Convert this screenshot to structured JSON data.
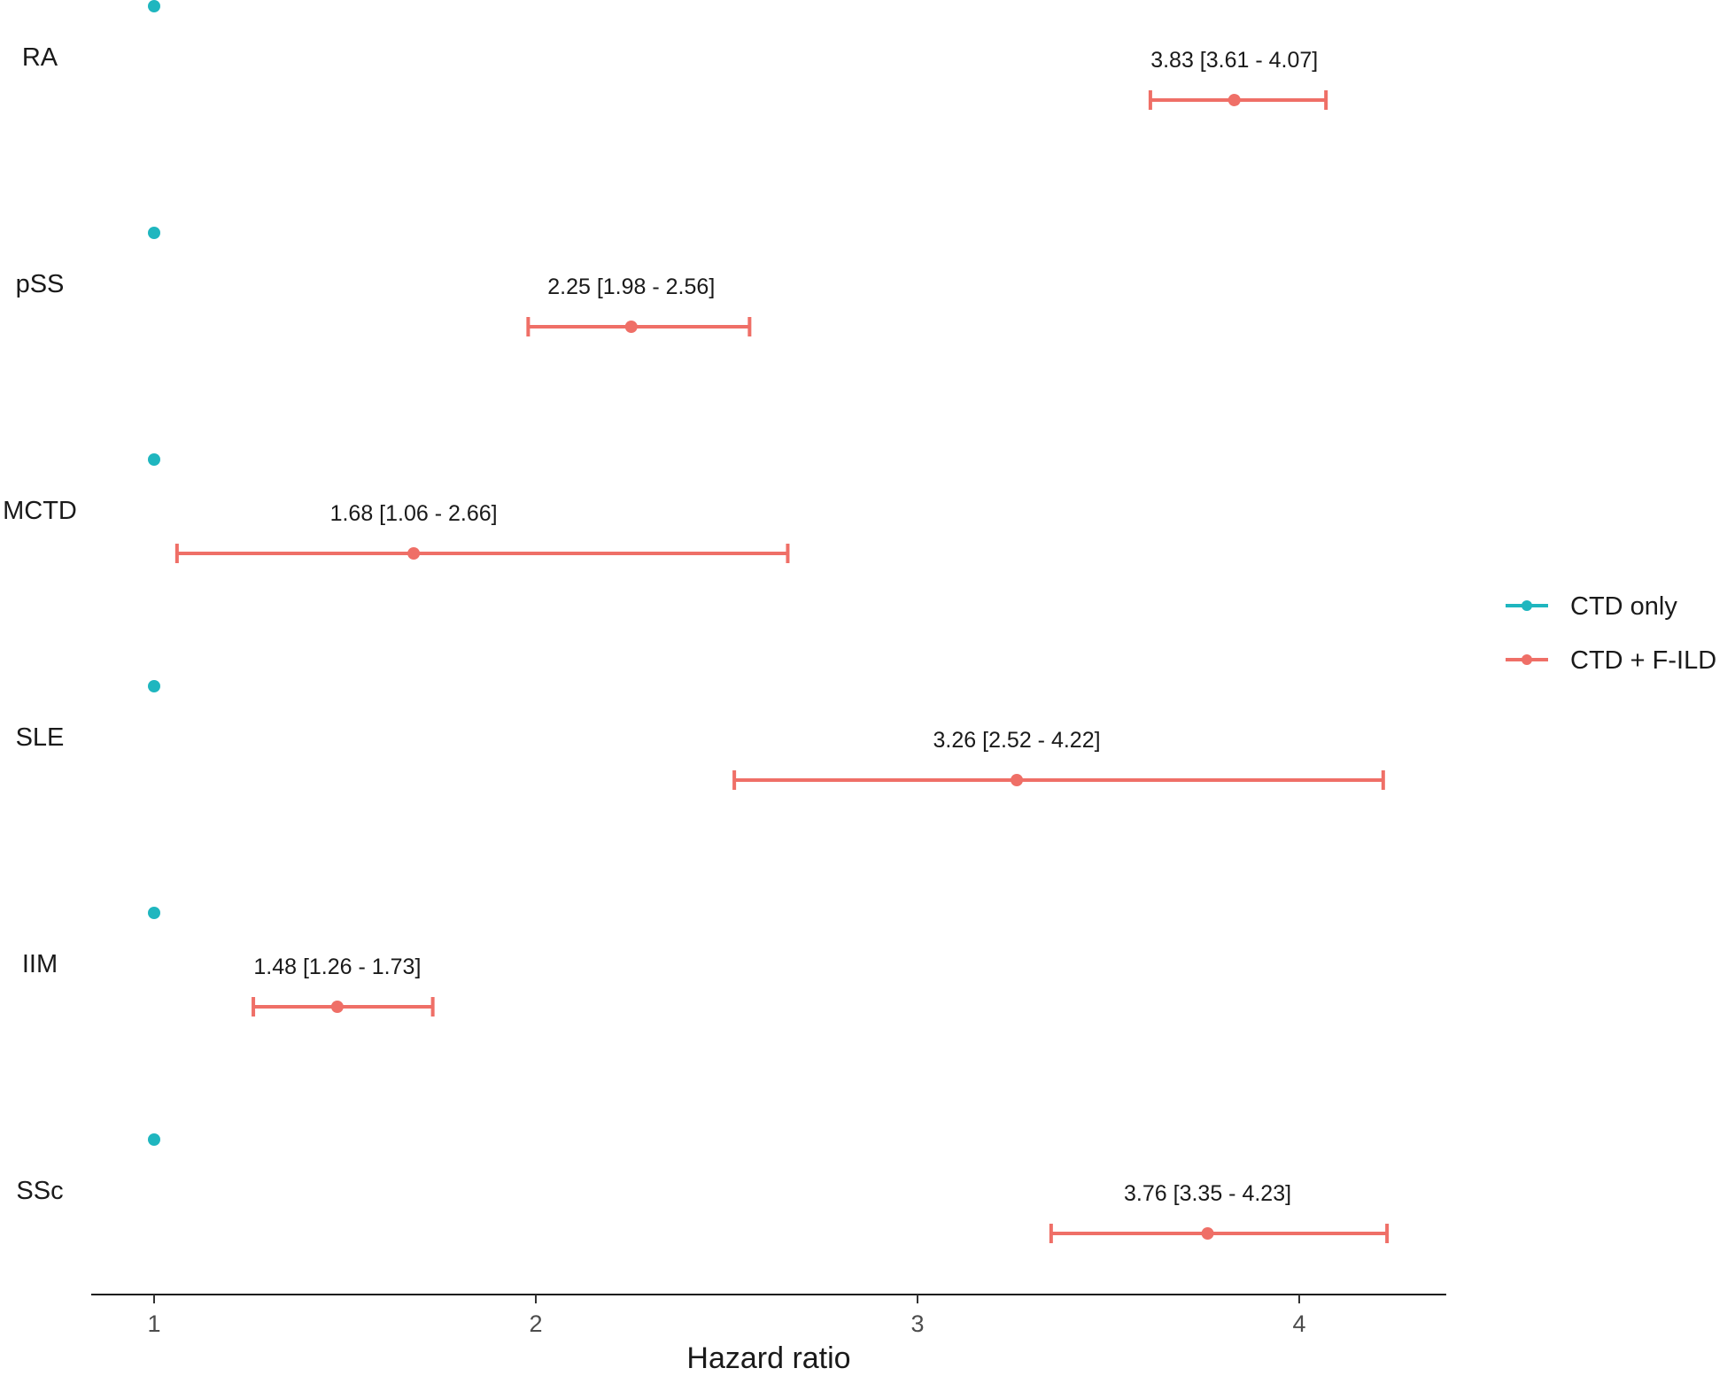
{
  "chart_data": {
    "type": "scatter",
    "subtype": "forest-plot",
    "title": "",
    "xlabel": "Hazard ratio",
    "ylabel": "",
    "xlim": [
      0.84,
      4.4
    ],
    "xticks": [
      1,
      2,
      3,
      4
    ],
    "xtick_labels": [
      "1",
      "2",
      "3",
      "4"
    ],
    "grid": false,
    "legend_position": "right",
    "categories": [
      "RA",
      "pSS",
      "MCTD",
      "SLE",
      "IIM",
      "SSc"
    ],
    "series": [
      {
        "name": "CTD only",
        "color": "#1fb6bf",
        "points": [
          {
            "category": "RA",
            "hr": 1
          },
          {
            "category": "pSS",
            "hr": 1
          },
          {
            "category": "MCTD",
            "hr": 1
          },
          {
            "category": "SLE",
            "hr": 1
          },
          {
            "category": "IIM",
            "hr": 1
          },
          {
            "category": "SSc",
            "hr": 1
          }
        ]
      },
      {
        "name": "CTD + F-ILD",
        "color": "#ef6f67",
        "points": [
          {
            "category": "RA",
            "hr": 3.83,
            "lower": 3.61,
            "upper": 4.07,
            "label": "3.83 [3.61 - 4.07]"
          },
          {
            "category": "pSS",
            "hr": 2.25,
            "lower": 1.98,
            "upper": 2.56,
            "label": "2.25 [1.98 - 2.56]"
          },
          {
            "category": "MCTD",
            "hr": 1.68,
            "lower": 1.06,
            "upper": 2.66,
            "label": "1.68 [1.06 - 2.66]"
          },
          {
            "category": "SLE",
            "hr": 3.26,
            "lower": 2.52,
            "upper": 4.22,
            "label": "3.26 [2.52 - 4.22]"
          },
          {
            "category": "IIM",
            "hr": 1.48,
            "lower": 1.26,
            "upper": 1.73,
            "label": "1.48 [1.26 - 1.73]"
          },
          {
            "category": "SSc",
            "hr": 3.76,
            "lower": 3.35,
            "upper": 4.23,
            "label": "3.76 [3.35 - 4.23]"
          }
        ]
      }
    ]
  }
}
